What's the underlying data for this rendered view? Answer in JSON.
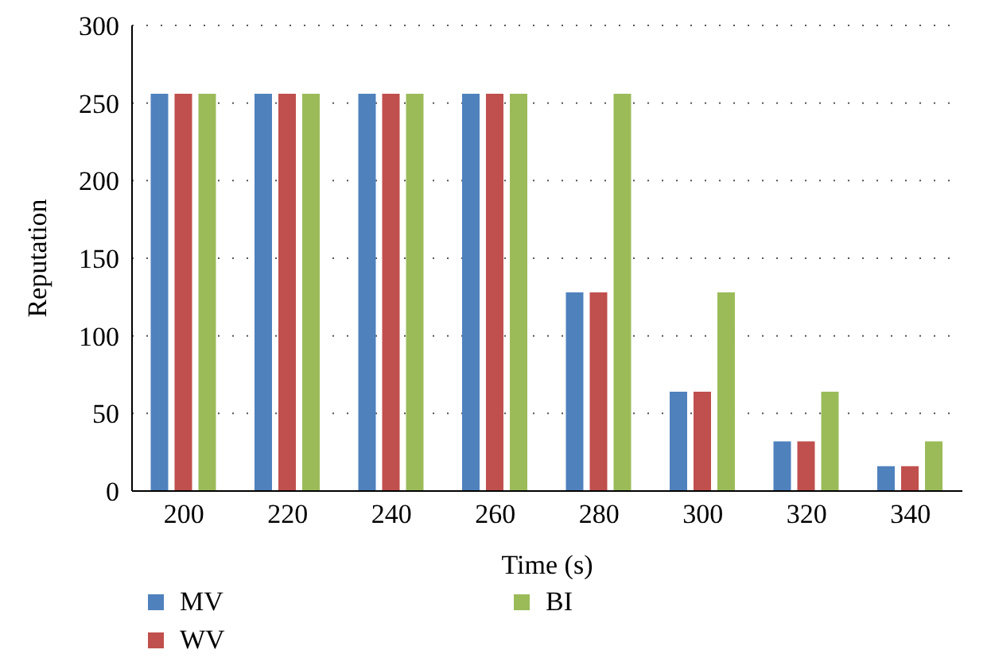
{
  "chart_data": {
    "type": "bar",
    "xlabel": "Time (s)",
    "ylabel": "Reputation",
    "categories": [
      "200",
      "220",
      "240",
      "260",
      "280",
      "300",
      "320",
      "340"
    ],
    "series": [
      {
        "name": "MV",
        "color": "#4f81bd",
        "values": [
          256,
          256,
          256,
          256,
          128,
          64,
          32,
          16
        ]
      },
      {
        "name": "WV",
        "color": "#c0504d",
        "values": [
          256,
          256,
          256,
          256,
          128,
          64,
          32,
          16
        ]
      },
      {
        "name": "BI",
        "color": "#9bbb59",
        "values": [
          256,
          256,
          256,
          256,
          256,
          128,
          64,
          32
        ]
      }
    ],
    "ylim": [
      0,
      300
    ],
    "yticks": [
      0,
      50,
      100,
      150,
      200,
      250,
      300
    ],
    "grid": "y",
    "legend": "bottom"
  }
}
